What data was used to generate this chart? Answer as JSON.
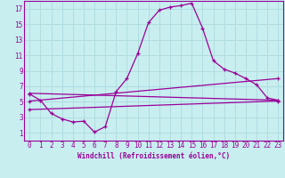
{
  "xlabel": "Windchill (Refroidissement éolien,°C)",
  "background_color": "#c8eef0",
  "grid_color": "#b0dde0",
  "line_color": "#990099",
  "xlim": [
    -0.5,
    23.5
  ],
  "ylim": [
    0,
    18
  ],
  "xticks": [
    0,
    1,
    2,
    3,
    4,
    5,
    6,
    7,
    8,
    9,
    10,
    11,
    12,
    13,
    14,
    15,
    16,
    17,
    18,
    19,
    20,
    21,
    22,
    23
  ],
  "yticks": [
    1,
    3,
    5,
    7,
    9,
    11,
    13,
    15,
    17
  ],
  "series1_x": [
    0,
    1,
    2,
    3,
    4,
    5,
    6,
    7,
    8,
    9,
    10,
    11,
    12,
    13,
    14,
    15,
    16,
    17,
    18,
    19,
    20,
    21,
    22,
    23
  ],
  "series1_y": [
    6.0,
    5.2,
    3.5,
    2.8,
    2.4,
    2.5,
    1.1,
    1.8,
    6.3,
    8.0,
    11.2,
    15.2,
    16.8,
    17.2,
    17.4,
    17.7,
    14.5,
    10.3,
    9.2,
    8.7,
    8.0,
    7.2,
    5.5,
    5.2
  ],
  "series2_x": [
    0,
    23
  ],
  "series2_y": [
    6.1,
    5.2
  ],
  "series3_x": [
    0,
    23
  ],
  "series3_y": [
    5.1,
    8.0
  ],
  "series4_x": [
    0,
    23
  ],
  "series4_y": [
    4.0,
    5.1
  ],
  "tick_fontsize": 5.5,
  "xlabel_fontsize": 5.5
}
